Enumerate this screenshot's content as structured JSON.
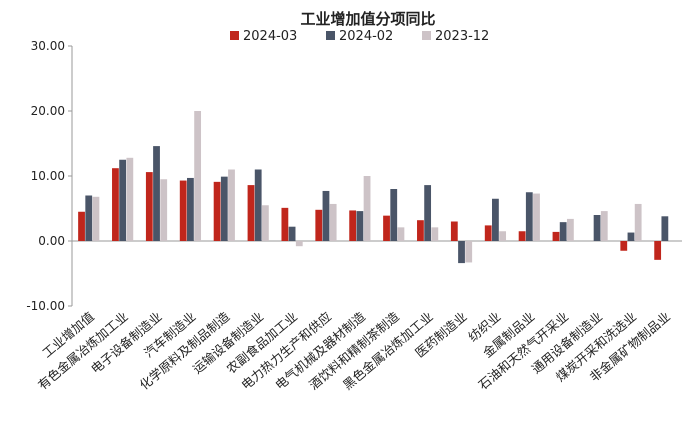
{
  "chart_data": {
    "type": "bar",
    "title": "工业增加值分项同比",
    "xlabel": "",
    "ylabel": "",
    "ylim": [
      -10,
      30
    ],
    "yticks": [
      "30.00",
      "20.00",
      "10.00",
      "0.00",
      "-10.00"
    ],
    "ytick_values": [
      30,
      20,
      10,
      0,
      -10
    ],
    "legend_position": "top-center",
    "grid": false,
    "categories": [
      "工业增加值",
      "有色金属冶炼加工业",
      "电子设备制造业",
      "汽车制造业",
      "化学原料及制品制造",
      "运输设备制造业",
      "农副食品加工业",
      "电力热力生产和供应",
      "电气机械及器材制造",
      "酒饮料和精制茶制造",
      "黑色金属冶炼加工业",
      "医药制造业",
      "纺织业",
      "金属制品业",
      "石油和天然气开采业",
      "通用设备制造业",
      "煤炭开采和洗选业",
      "非金属矿物制品业"
    ],
    "series": [
      {
        "name": "2024-03",
        "color": "#c0261c",
        "values": [
          4.5,
          11.2,
          10.6,
          9.3,
          9.1,
          8.6,
          5.1,
          4.8,
          4.7,
          3.9,
          3.2,
          3.0,
          2.4,
          1.5,
          1.4,
          0.0,
          -1.5,
          -2.9
        ]
      },
      {
        "name": "2024-02",
        "color": "#4a5568",
        "values": [
          7.0,
          12.5,
          14.6,
          9.7,
          9.9,
          11.0,
          2.2,
          7.7,
          4.6,
          8.0,
          8.6,
          -3.4,
          6.5,
          7.5,
          2.9,
          4.0,
          1.3,
          3.8
        ]
      },
      {
        "name": "2023-12",
        "color": "#cdc3c7",
        "values": [
          6.8,
          12.8,
          9.5,
          20.0,
          11.0,
          5.5,
          -0.8,
          5.7,
          10.0,
          2.1,
          2.1,
          -3.3,
          1.5,
          7.3,
          3.4,
          4.6,
          5.7,
          0.0
        ]
      }
    ]
  }
}
